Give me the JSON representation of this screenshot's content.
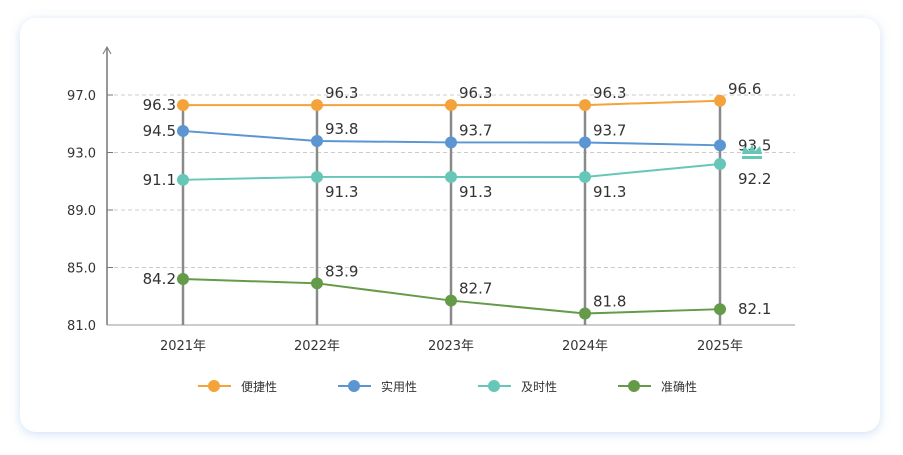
{
  "chart_data": {
    "type": "line",
    "categories": [
      "2021年",
      "2022年",
      "2023年",
      "2024年",
      "2025年"
    ],
    "ylim": [
      81,
      97
    ],
    "yticks": [
      "81.0",
      "85.0",
      "89.0",
      "93.0",
      "97.0"
    ],
    "grid": true,
    "legend_position": "bottom",
    "series": [
      {
        "name": "便捷性",
        "color": "#F4A23A",
        "values": [
          96.3,
          96.3,
          96.3,
          96.3,
          96.6
        ],
        "labels": [
          "96.3",
          "96.3",
          "96.3",
          "96.3",
          "96.6"
        ]
      },
      {
        "name": "实用性",
        "color": "#5B95D2",
        "values": [
          94.5,
          93.8,
          93.7,
          93.7,
          93.5
        ],
        "labels": [
          "94.5",
          "93.8",
          "93.7",
          "93.7",
          "93.5"
        ]
      },
      {
        "name": "及时性",
        "color": "#66C7B8",
        "values": [
          91.1,
          91.3,
          91.3,
          91.3,
          92.2
        ],
        "labels": [
          "91.1",
          "91.3",
          "91.3",
          "91.3",
          "92.2"
        ]
      },
      {
        "name": "准确性",
        "color": "#659A48",
        "values": [
          84.2,
          83.9,
          82.7,
          81.8,
          82.1
        ],
        "labels": [
          "84.2",
          "83.9",
          "82.7",
          "81.8",
          "82.1"
        ]
      }
    ],
    "highlight": {
      "series": "及时性",
      "category": "2025年",
      "label_color": "#E8232F",
      "icon": "crown-icon",
      "icon_color": "#66C7B8"
    }
  }
}
